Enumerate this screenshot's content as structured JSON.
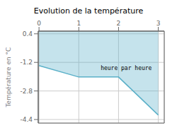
{
  "chart_data": {
    "type": "area",
    "title": "Evolution de la température",
    "y_label": "Température en °C",
    "x": [
      0,
      1,
      2,
      3
    ],
    "values": [
      -1.38,
      -2.02,
      -2.02,
      -4.15
    ],
    "color": "#5ab0c8",
    "xlim": [
      -0.02,
      3.15
    ],
    "ylim": [
      -4.6,
      0.55
    ],
    "xticks": [
      0,
      1,
      2,
      3
    ],
    "yticks": [
      0.4,
      -1.2,
      -2.8,
      -4.4
    ],
    "grid": true,
    "annotations": [
      {
        "text": "heure par heure",
        "x": 1.55,
        "y": -1.3
      }
    ]
  }
}
